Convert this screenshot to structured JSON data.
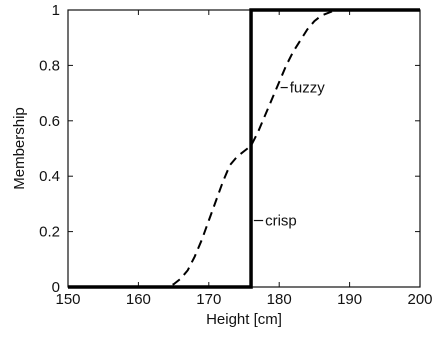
{
  "chart_data": {
    "type": "line",
    "title": "",
    "xlabel": "Height [cm]",
    "ylabel": "Membership",
    "xlim": [
      150,
      200
    ],
    "ylim": [
      0,
      1
    ],
    "xticks": [
      "150",
      "160",
      "170",
      "180",
      "190",
      "200"
    ],
    "yticks": [
      "0",
      "0.2",
      "0.4",
      "0.6",
      "0.8",
      "1"
    ],
    "grid": false,
    "series": [
      {
        "name": "crisp",
        "style": "solid",
        "color": "#000000",
        "x": [
          150,
          176,
          176,
          200
        ],
        "y": [
          0,
          0,
          1,
          1
        ]
      },
      {
        "name": "fuzzy",
        "style": "dashed",
        "color": "#000000",
        "x": [
          150,
          164,
          165,
          166,
          167,
          168,
          169,
          170,
          171,
          172,
          173,
          174,
          175,
          176,
          177,
          178,
          179,
          180,
          181,
          182,
          183,
          184,
          185,
          186,
          187,
          188,
          200
        ],
        "y": [
          0,
          0,
          0.01,
          0.03,
          0.06,
          0.11,
          0.17,
          0.24,
          0.31,
          0.38,
          0.44,
          0.47,
          0.49,
          0.51,
          0.56,
          0.62,
          0.68,
          0.74,
          0.8,
          0.85,
          0.89,
          0.93,
          0.96,
          0.98,
          0.99,
          1.0,
          1.0
        ]
      }
    ],
    "annotations": [
      {
        "text": "fuzzy",
        "x": 181.5,
        "y": 0.72,
        "leader_from_x": 180.2
      },
      {
        "text": "crisp",
        "x": 178,
        "y": 0.24,
        "leader_from_x": 176.4
      }
    ]
  }
}
